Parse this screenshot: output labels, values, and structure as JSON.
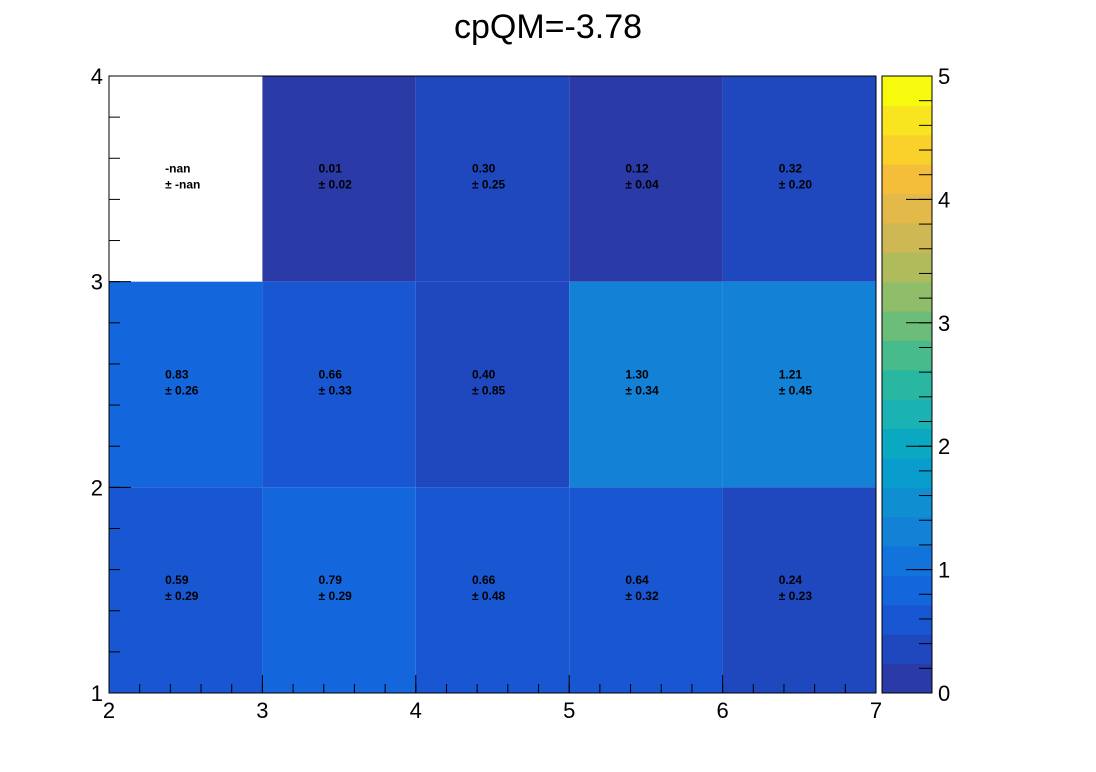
{
  "chart_data": {
    "type": "heatmap",
    "title": "cpQM=-3.78",
    "xlabel": "",
    "ylabel": "",
    "x_edges": [
      2,
      3,
      4,
      5,
      6,
      7
    ],
    "y_edges": [
      1,
      2,
      3,
      4
    ],
    "xlim": [
      2,
      7
    ],
    "ylim": [
      1,
      4
    ],
    "x_ticks": [
      "2",
      "3",
      "4",
      "5",
      "6",
      "7"
    ],
    "y_ticks": [
      "1",
      "2",
      "3",
      "4"
    ],
    "colorbar": {
      "range": [
        0,
        5
      ],
      "ticks": [
        "0",
        "1",
        "2",
        "3",
        "4",
        "5"
      ],
      "palette": [
        "#2a3aa6",
        "#1f48bf",
        "#1957d2",
        "#1466dd",
        "#1373dc",
        "#1381d5",
        "#0f8fd2",
        "#099dce",
        "#0ba8c2",
        "#1ab2b2",
        "#2ab7a1",
        "#48bb8c",
        "#6bbd79",
        "#90bd6a",
        "#b0bc5c",
        "#cdb853",
        "#e3b94a",
        "#f5be3a",
        "#fad02b",
        "#f9e51f",
        "#f8fa0d"
      ]
    },
    "cells": [
      {
        "x": 2,
        "y": 3,
        "value": null,
        "label": "-nan",
        "error_label": "± -nan"
      },
      {
        "x": 3,
        "y": 3,
        "value": 0.01,
        "label": "0.01",
        "error_label": "± 0.02"
      },
      {
        "x": 4,
        "y": 3,
        "value": 0.3,
        "label": "0.30",
        "error_label": "± 0.25"
      },
      {
        "x": 5,
        "y": 3,
        "value": 0.12,
        "label": "0.12",
        "error_label": "± 0.04"
      },
      {
        "x": 6,
        "y": 3,
        "value": 0.32,
        "label": "0.32",
        "error_label": "± 0.20"
      },
      {
        "x": 2,
        "y": 2,
        "value": 0.83,
        "label": "0.83",
        "error_label": "± 0.26"
      },
      {
        "x": 3,
        "y": 2,
        "value": 0.66,
        "label": "0.66",
        "error_label": "± 0.33"
      },
      {
        "x": 4,
        "y": 2,
        "value": 0.4,
        "label": "0.40",
        "error_label": "± 0.85"
      },
      {
        "x": 5,
        "y": 2,
        "value": 1.3,
        "label": "1.30",
        "error_label": "± 0.34"
      },
      {
        "x": 6,
        "y": 2,
        "value": 1.21,
        "label": "1.21",
        "error_label": "± 0.45"
      },
      {
        "x": 2,
        "y": 1,
        "value": 0.59,
        "label": "0.59",
        "error_label": "± 0.29"
      },
      {
        "x": 3,
        "y": 1,
        "value": 0.79,
        "label": "0.79",
        "error_label": "± 0.29"
      },
      {
        "x": 4,
        "y": 1,
        "value": 0.66,
        "label": "0.66",
        "error_label": "± 0.48"
      },
      {
        "x": 5,
        "y": 1,
        "value": 0.64,
        "label": "0.64",
        "error_label": "± 0.32"
      },
      {
        "x": 6,
        "y": 1,
        "value": 0.24,
        "label": "0.24",
        "error_label": "± 0.23"
      }
    ]
  }
}
